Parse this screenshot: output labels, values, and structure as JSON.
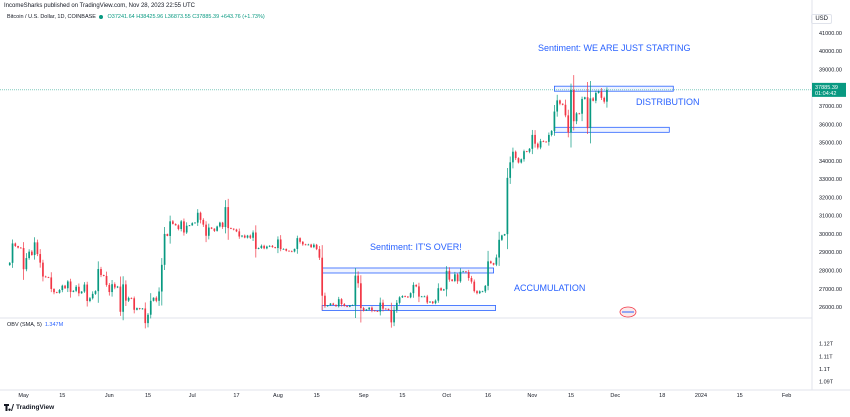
{
  "publish_line": "IncomeSharks published on TradingView.com, Nov 28, 2023 22:55 UTC",
  "symbol": {
    "name": "Bitcoin / U.S. Dollar, 1D, COINBASE",
    "open": "O37241.64",
    "high": "H38425.96",
    "low": "L36873.55",
    "close": "C37885.39",
    "change": "+643.76 (+1.73%)"
  },
  "currency": "USD",
  "price_label": {
    "price": "37885.39",
    "countdown": "01:04:42"
  },
  "annotations": {
    "sentiment_top": "Sentiment:    WE ARE JUST STARTING",
    "distribution": "DISTRIBUTION",
    "sentiment_mid": "Sentiment:    IT'S OVER!",
    "accumulation": "ACCUMULATION"
  },
  "obv_legend": {
    "name": "OBV (SMA, 5)",
    "value": "1.347M"
  },
  "logo_text": "TradingView",
  "colors": {
    "up": "#089981",
    "down": "#f23645",
    "annotation": "#2962ff",
    "price_line": "#089981"
  },
  "chart_data": {
    "type": "candlestick",
    "title": "Bitcoin / U.S. Dollar, 1D, COINBASE",
    "x_tick_labels": [
      "May",
      "15",
      "Jun",
      "15",
      "Jul",
      "17",
      "Aug",
      "15",
      "Sep",
      "15",
      "Oct",
      "16",
      "Nov",
      "15",
      "Dec",
      "18",
      "2024",
      "15",
      "Feb"
    ],
    "y_axis": {
      "ylim": [
        25400,
        41600
      ],
      "tick_labels": [
        "41000.00",
        "40000.00",
        "39000.00",
        "38000.00",
        "37000.00",
        "36000.00",
        "35000.00",
        "34000.00",
        "33000.00",
        "32000.00",
        "31000.00",
        "30000.00",
        "29000.00",
        "28000.00",
        "27000.00",
        "26000.00"
      ]
    },
    "close_series": [
      {
        "date": "2023-04-25",
        "close": 28300
      },
      {
        "date": "2023-04-26",
        "close": 28420
      },
      {
        "date": "2023-04-27",
        "close": 29480
      },
      {
        "date": "2023-04-28",
        "close": 29340
      },
      {
        "date": "2023-04-29",
        "close": 29250
      },
      {
        "date": "2023-04-30",
        "close": 29230
      },
      {
        "date": "2023-05-01",
        "close": 28070
      },
      {
        "date": "2023-05-02",
        "close": 28680
      },
      {
        "date": "2023-05-03",
        "close": 29030
      },
      {
        "date": "2023-05-04",
        "close": 28850
      },
      {
        "date": "2023-05-05",
        "close": 29540
      },
      {
        "date": "2023-05-06",
        "close": 28900
      },
      {
        "date": "2023-05-07",
        "close": 28430
      },
      {
        "date": "2023-05-08",
        "close": 27670
      },
      {
        "date": "2023-05-09",
        "close": 27630
      },
      {
        "date": "2023-05-10",
        "close": 27620
      },
      {
        "date": "2023-05-11",
        "close": 26990
      },
      {
        "date": "2023-05-12",
        "close": 26810
      },
      {
        "date": "2023-05-13",
        "close": 26780
      },
      {
        "date": "2023-05-14",
        "close": 26930
      },
      {
        "date": "2023-05-15",
        "close": 27170
      },
      {
        "date": "2023-05-16",
        "close": 27030
      },
      {
        "date": "2023-05-17",
        "close": 27400
      },
      {
        "date": "2023-05-18",
        "close": 26830
      },
      {
        "date": "2023-05-19",
        "close": 26890
      },
      {
        "date": "2023-05-20",
        "close": 27110
      },
      {
        "date": "2023-05-21",
        "close": 26750
      },
      {
        "date": "2023-05-22",
        "close": 26850
      },
      {
        "date": "2023-05-23",
        "close": 27230
      },
      {
        "date": "2023-05-24",
        "close": 26330
      },
      {
        "date": "2023-05-25",
        "close": 26480
      },
      {
        "date": "2023-05-26",
        "close": 26720
      },
      {
        "date": "2023-05-27",
        "close": 26870
      },
      {
        "date": "2023-05-28",
        "close": 28080
      },
      {
        "date": "2023-05-29",
        "close": 27750
      },
      {
        "date": "2023-05-30",
        "close": 27700
      },
      {
        "date": "2023-05-31",
        "close": 27210
      },
      {
        "date": "2023-06-01",
        "close": 26820
      },
      {
        "date": "2023-06-02",
        "close": 27250
      },
      {
        "date": "2023-06-03",
        "close": 27070
      },
      {
        "date": "2023-06-04",
        "close": 27120
      },
      {
        "date": "2023-06-05",
        "close": 25740
      },
      {
        "date": "2023-06-06",
        "close": 27240
      },
      {
        "date": "2023-06-07",
        "close": 26350
      },
      {
        "date": "2023-06-08",
        "close": 26500
      },
      {
        "date": "2023-06-09",
        "close": 26480
      },
      {
        "date": "2023-06-10",
        "close": 25850
      },
      {
        "date": "2023-06-11",
        "close": 25940
      },
      {
        "date": "2023-06-12",
        "close": 25900
      },
      {
        "date": "2023-06-13",
        "close": 25920
      },
      {
        "date": "2023-06-14",
        "close": 25120
      },
      {
        "date": "2023-06-15",
        "close": 25580
      },
      {
        "date": "2023-06-16",
        "close": 26340
      },
      {
        "date": "2023-06-17",
        "close": 26510
      },
      {
        "date": "2023-06-18",
        "close": 26340
      },
      {
        "date": "2023-06-19",
        "close": 26850
      },
      {
        "date": "2023-06-20",
        "close": 28310
      },
      {
        "date": "2023-06-21",
        "close": 30000
      },
      {
        "date": "2023-06-22",
        "close": 29890
      },
      {
        "date": "2023-06-23",
        "close": 30690
      },
      {
        "date": "2023-06-24",
        "close": 30550
      },
      {
        "date": "2023-06-25",
        "close": 30470
      },
      {
        "date": "2023-06-26",
        "close": 30270
      },
      {
        "date": "2023-06-27",
        "close": 30690
      },
      {
        "date": "2023-06-28",
        "close": 30080
      },
      {
        "date": "2023-06-29",
        "close": 30450
      },
      {
        "date": "2023-06-30",
        "close": 30470
      },
      {
        "date": "2023-07-01",
        "close": 30590
      },
      {
        "date": "2023-07-02",
        "close": 30620
      },
      {
        "date": "2023-07-03",
        "close": 31160
      },
      {
        "date": "2023-07-04",
        "close": 30770
      },
      {
        "date": "2023-07-05",
        "close": 30510
      },
      {
        "date": "2023-07-06",
        "close": 29900
      },
      {
        "date": "2023-07-07",
        "close": 30350
      },
      {
        "date": "2023-07-08",
        "close": 30290
      },
      {
        "date": "2023-07-09",
        "close": 30170
      },
      {
        "date": "2023-07-10",
        "close": 30410
      },
      {
        "date": "2023-07-11",
        "close": 30620
      },
      {
        "date": "2023-07-12",
        "close": 30380
      },
      {
        "date": "2023-07-13",
        "close": 31470
      },
      {
        "date": "2023-07-14",
        "close": 30320
      },
      {
        "date": "2023-07-15",
        "close": 30290
      },
      {
        "date": "2023-07-16",
        "close": 30240
      },
      {
        "date": "2023-07-17",
        "close": 30140
      },
      {
        "date": "2023-07-18",
        "close": 29860
      },
      {
        "date": "2023-07-19",
        "close": 29910
      },
      {
        "date": "2023-07-20",
        "close": 29800
      },
      {
        "date": "2023-07-21",
        "close": 29910
      },
      {
        "date": "2023-07-22",
        "close": 29790
      },
      {
        "date": "2023-07-23",
        "close": 30080
      },
      {
        "date": "2023-07-24",
        "close": 29180
      },
      {
        "date": "2023-07-25",
        "close": 29230
      },
      {
        "date": "2023-07-26",
        "close": 29350
      },
      {
        "date": "2023-07-27",
        "close": 29210
      },
      {
        "date": "2023-07-28",
        "close": 29310
      },
      {
        "date": "2023-07-29",
        "close": 29350
      },
      {
        "date": "2023-07-30",
        "close": 29280
      },
      {
        "date": "2023-07-31",
        "close": 29230
      },
      {
        "date": "2023-08-01",
        "close": 29700
      },
      {
        "date": "2023-08-02",
        "close": 29170
      },
      {
        "date": "2023-08-03",
        "close": 29180
      },
      {
        "date": "2023-08-04",
        "close": 29080
      },
      {
        "date": "2023-08-05",
        "close": 29050
      },
      {
        "date": "2023-08-06",
        "close": 29040
      },
      {
        "date": "2023-08-07",
        "close": 29180
      },
      {
        "date": "2023-08-08",
        "close": 29770
      },
      {
        "date": "2023-08-09",
        "close": 29570
      },
      {
        "date": "2023-08-10",
        "close": 29430
      },
      {
        "date": "2023-08-11",
        "close": 29400
      },
      {
        "date": "2023-08-12",
        "close": 29420
      },
      {
        "date": "2023-08-13",
        "close": 29280
      },
      {
        "date": "2023-08-14",
        "close": 29410
      },
      {
        "date": "2023-08-15",
        "close": 29170
      },
      {
        "date": "2023-08-16",
        "close": 28700
      },
      {
        "date": "2023-08-17",
        "close": 26620
      },
      {
        "date": "2023-08-18",
        "close": 26050
      },
      {
        "date": "2023-08-19",
        "close": 26100
      },
      {
        "date": "2023-08-20",
        "close": 26190
      },
      {
        "date": "2023-08-21",
        "close": 26120
      },
      {
        "date": "2023-08-22",
        "close": 26040
      },
      {
        "date": "2023-08-23",
        "close": 26430
      },
      {
        "date": "2023-08-24",
        "close": 26160
      },
      {
        "date": "2023-08-25",
        "close": 26050
      },
      {
        "date": "2023-08-26",
        "close": 26010
      },
      {
        "date": "2023-08-27",
        "close": 26090
      },
      {
        "date": "2023-08-28",
        "close": 26100
      },
      {
        "date": "2023-08-29",
        "close": 27720
      },
      {
        "date": "2023-08-30",
        "close": 27300
      },
      {
        "date": "2023-08-31",
        "close": 25940
      },
      {
        "date": "2023-09-01",
        "close": 25800
      },
      {
        "date": "2023-09-02",
        "close": 25870
      },
      {
        "date": "2023-09-03",
        "close": 25970
      },
      {
        "date": "2023-09-04",
        "close": 25810
      },
      {
        "date": "2023-09-05",
        "close": 25780
      },
      {
        "date": "2023-09-06",
        "close": 25750
      },
      {
        "date": "2023-09-07",
        "close": 26240
      },
      {
        "date": "2023-09-08",
        "close": 25910
      },
      {
        "date": "2023-09-09",
        "close": 25900
      },
      {
        "date": "2023-09-10",
        "close": 25840
      },
      {
        "date": "2023-09-11",
        "close": 25160
      },
      {
        "date": "2023-09-12",
        "close": 25840
      },
      {
        "date": "2023-09-13",
        "close": 26230
      },
      {
        "date": "2023-09-14",
        "close": 26530
      },
      {
        "date": "2023-09-15",
        "close": 26600
      },
      {
        "date": "2023-09-16",
        "close": 26570
      },
      {
        "date": "2023-09-17",
        "close": 26530
      },
      {
        "date": "2023-09-18",
        "close": 26760
      },
      {
        "date": "2023-09-19",
        "close": 27210
      },
      {
        "date": "2023-09-20",
        "close": 27130
      },
      {
        "date": "2023-09-21",
        "close": 26570
      },
      {
        "date": "2023-09-22",
        "close": 26580
      },
      {
        "date": "2023-09-23",
        "close": 26580
      },
      {
        "date": "2023-09-24",
        "close": 26250
      },
      {
        "date": "2023-09-25",
        "close": 26300
      },
      {
        "date": "2023-09-26",
        "close": 26210
      },
      {
        "date": "2023-09-27",
        "close": 26350
      },
      {
        "date": "2023-09-28",
        "close": 27030
      },
      {
        "date": "2023-09-29",
        "close": 26910
      },
      {
        "date": "2023-09-30",
        "close": 26970
      },
      {
        "date": "2023-10-01",
        "close": 27980
      },
      {
        "date": "2023-10-02",
        "close": 27500
      },
      {
        "date": "2023-10-03",
        "close": 27430
      },
      {
        "date": "2023-10-04",
        "close": 27790
      },
      {
        "date": "2023-10-05",
        "close": 27410
      },
      {
        "date": "2023-10-06",
        "close": 27930
      },
      {
        "date": "2023-10-07",
        "close": 27950
      },
      {
        "date": "2023-10-08",
        "close": 27920
      },
      {
        "date": "2023-10-09",
        "close": 27590
      },
      {
        "date": "2023-10-10",
        "close": 27390
      },
      {
        "date": "2023-10-11",
        "close": 26870
      },
      {
        "date": "2023-10-12",
        "close": 26760
      },
      {
        "date": "2023-10-13",
        "close": 26860
      },
      {
        "date": "2023-10-14",
        "close": 26860
      },
      {
        "date": "2023-10-15",
        "close": 27160
      },
      {
        "date": "2023-10-16",
        "close": 28500
      },
      {
        "date": "2023-10-17",
        "close": 28400
      },
      {
        "date": "2023-10-18",
        "close": 28320
      },
      {
        "date": "2023-10-19",
        "close": 28710
      },
      {
        "date": "2023-10-20",
        "close": 29680
      },
      {
        "date": "2023-10-21",
        "close": 29920
      },
      {
        "date": "2023-10-22",
        "close": 29990
      },
      {
        "date": "2023-10-23",
        "close": 33070
      },
      {
        "date": "2023-10-24",
        "close": 33920
      },
      {
        "date": "2023-10-25",
        "close": 34500
      },
      {
        "date": "2023-10-26",
        "close": 34150
      },
      {
        "date": "2023-10-27",
        "close": 33910
      },
      {
        "date": "2023-10-28",
        "close": 34090
      },
      {
        "date": "2023-10-29",
        "close": 34530
      },
      {
        "date": "2023-10-30",
        "close": 34500
      },
      {
        "date": "2023-10-31",
        "close": 34660
      },
      {
        "date": "2023-11-01",
        "close": 35420
      },
      {
        "date": "2023-11-02",
        "close": 34940
      },
      {
        "date": "2023-11-03",
        "close": 34730
      },
      {
        "date": "2023-11-04",
        "close": 35080
      },
      {
        "date": "2023-11-05",
        "close": 35050
      },
      {
        "date": "2023-11-06",
        "close": 35040
      },
      {
        "date": "2023-11-07",
        "close": 35420
      },
      {
        "date": "2023-11-08",
        "close": 35640
      },
      {
        "date": "2023-11-09",
        "close": 36700
      },
      {
        "date": "2023-11-10",
        "close": 37310
      },
      {
        "date": "2023-11-11",
        "close": 37130
      },
      {
        "date": "2023-11-12",
        "close": 37070
      },
      {
        "date": "2023-11-13",
        "close": 36490
      },
      {
        "date": "2023-11-14",
        "close": 35550
      },
      {
        "date": "2023-11-15",
        "close": 37880
      },
      {
        "date": "2023-11-16",
        "close": 36170
      },
      {
        "date": "2023-11-17",
        "close": 36600
      },
      {
        "date": "2023-11-18",
        "close": 36580
      },
      {
        "date": "2023-11-19",
        "close": 37390
      },
      {
        "date": "2023-11-20",
        "close": 37480
      },
      {
        "date": "2023-11-21",
        "close": 35790
      },
      {
        "date": "2023-11-22",
        "close": 37420
      },
      {
        "date": "2023-11-23",
        "close": 37290
      },
      {
        "date": "2023-11-24",
        "close": 37720
      },
      {
        "date": "2023-11-25",
        "close": 37800
      },
      {
        "date": "2023-11-26",
        "close": 37450
      },
      {
        "date": "2023-11-27",
        "close": 37240
      },
      {
        "date": "2023-11-28",
        "close": 37885
      }
    ],
    "zones": [
      {
        "label": "DISTRIBUTION",
        "top": 37950,
        "bottom": 35700,
        "start": "2023-11-09",
        "end": "2023-12-22"
      },
      {
        "label": "ACCUMULATION",
        "top": 28000,
        "bottom": 25950,
        "start": "2023-08-17",
        "end": "2023-10-18"
      }
    ],
    "obv": {
      "name": "OBV (SMA, 5)",
      "value": "1.347M",
      "ylim": [
        1.085,
        1.137
      ],
      "tick_labels": [
        "1.12T",
        "1.11T",
        "1.1T",
        "1.09T"
      ]
    }
  }
}
